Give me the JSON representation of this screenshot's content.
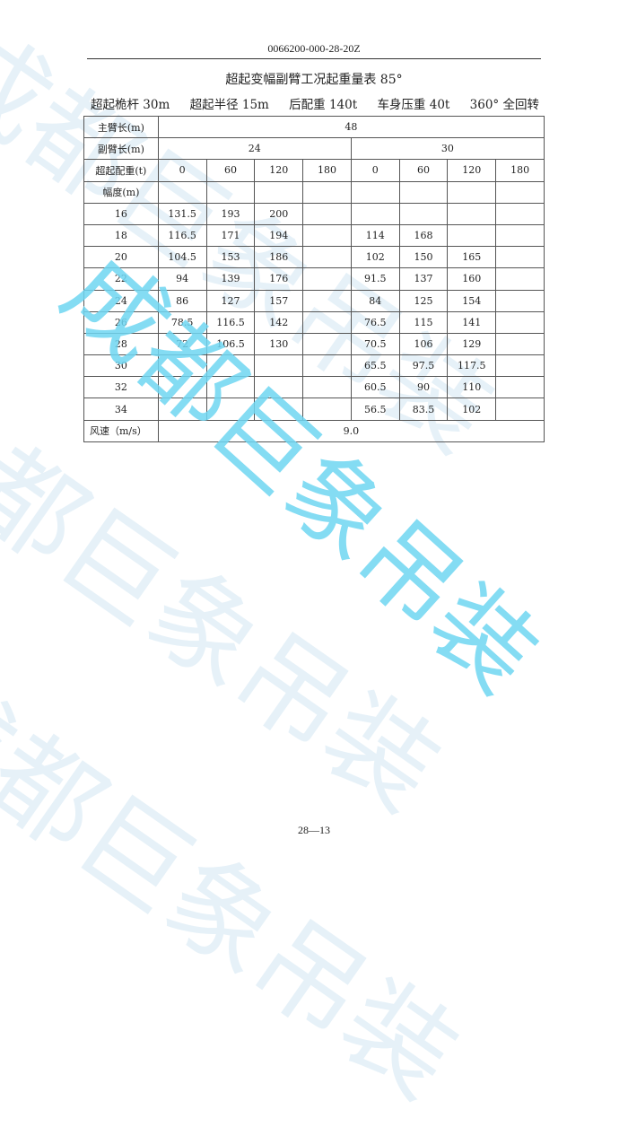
{
  "header": {
    "doc_number": "0066200-000-28-20Z"
  },
  "title": "超起变幅副臂工况起重量表 85°",
  "conditions": [
    "超起桅杆 30m",
    "超起半径 15m",
    "后配重 140t",
    "车身压重 40t",
    "360° 全回转"
  ],
  "table": {
    "main_boom_label": "主臂长(m)",
    "main_boom_value": "48",
    "jib_label": "副臂长(m)",
    "jib_values": [
      "24",
      "30"
    ],
    "counterweight_label": "超起配重(t)",
    "counterweights": [
      "0",
      "60",
      "120",
      "180",
      "0",
      "60",
      "120",
      "180"
    ],
    "radius_label": "幅度(m)",
    "rows": [
      [
        "16",
        "131.5",
        "193",
        "200",
        "",
        "",
        "",
        "",
        ""
      ],
      [
        "18",
        "116.5",
        "171",
        "194",
        "",
        "114",
        "168",
        "",
        ""
      ],
      [
        "20",
        "104.5",
        "153",
        "186",
        "",
        "102",
        "150",
        "165",
        ""
      ],
      [
        "22",
        "94",
        "139",
        "176",
        "",
        "91.5",
        "137",
        "160",
        ""
      ],
      [
        "24",
        "86",
        "127",
        "157",
        "",
        "84",
        "125",
        "154",
        ""
      ],
      [
        "26",
        "78.5",
        "116.5",
        "142",
        "",
        "76.5",
        "115",
        "141",
        ""
      ],
      [
        "28",
        "72",
        "106.5",
        "130",
        "",
        "70.5",
        "106",
        "129",
        ""
      ],
      [
        "30",
        "",
        "",
        "",
        "",
        "65.5",
        "97.5",
        "117.5",
        ""
      ],
      [
        "32",
        "",
        "",
        "",
        "",
        "60.5",
        "90",
        "110",
        ""
      ],
      [
        "34",
        "",
        "",
        "",
        "",
        "56.5",
        "83.5",
        "102",
        ""
      ]
    ],
    "wind_label": "风速（m/s）",
    "wind_value": "9.0"
  },
  "footer": {
    "page": "28—13"
  },
  "watermark": "成都巨象吊装",
  "colors": {
    "watermark_faint": "#e6f1f8",
    "watermark_accent": "#6fd6f2"
  }
}
